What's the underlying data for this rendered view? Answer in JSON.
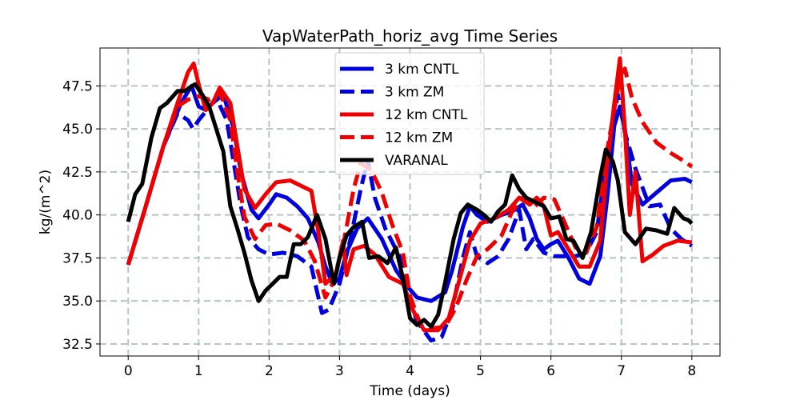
{
  "chart_data": {
    "type": "line",
    "title": "VapWaterPath_horiz_avg Time Series",
    "xlabel": "Time (days)",
    "ylabel": "kg/(m^2)",
    "xlim": [
      -0.4,
      8.4
    ],
    "ylim": [
      31.8,
      49.7
    ],
    "xticks": [
      0,
      1,
      2,
      3,
      4,
      5,
      6,
      7,
      8
    ],
    "xtick_labels": [
      "0",
      "1",
      "2",
      "3",
      "4",
      "5",
      "6",
      "7",
      "8"
    ],
    "yticks": [
      32.5,
      35.0,
      37.5,
      40.0,
      42.5,
      45.0,
      47.5
    ],
    "ytick_labels": [
      "32.5",
      "35.0",
      "37.5",
      "40.0",
      "42.5",
      "45.0",
      "47.5"
    ],
    "grid": true,
    "legend_position": "upper-center",
    "series": [
      {
        "name": "3 km CNTL",
        "color": "#0000dd",
        "dash": "solid",
        "points": [
          [
            0,
            37.1
          ],
          [
            0.25,
            40.5
          ],
          [
            0.5,
            44.0
          ],
          [
            0.75,
            46.5
          ],
          [
            0.9,
            47.5
          ],
          [
            1.0,
            46.3
          ],
          [
            1.1,
            46.1
          ],
          [
            1.2,
            46.5
          ],
          [
            1.35,
            47.0
          ],
          [
            1.5,
            45.0
          ],
          [
            1.6,
            42.5
          ],
          [
            1.75,
            40.3
          ],
          [
            1.85,
            39.8
          ],
          [
            2.0,
            40.6
          ],
          [
            2.1,
            41.2
          ],
          [
            2.25,
            41.0
          ],
          [
            2.4,
            40.5
          ],
          [
            2.55,
            39.8
          ],
          [
            2.7,
            38.4
          ],
          [
            2.8,
            37.0
          ],
          [
            2.9,
            36.0
          ],
          [
            3.0,
            36.3
          ],
          [
            3.1,
            37.8
          ],
          [
            3.25,
            39.2
          ],
          [
            3.4,
            39.8
          ],
          [
            3.6,
            38.6
          ],
          [
            3.8,
            36.8
          ],
          [
            3.95,
            35.9
          ],
          [
            4.1,
            35.2
          ],
          [
            4.3,
            35.0
          ],
          [
            4.5,
            35.5
          ],
          [
            4.6,
            36.8
          ],
          [
            4.75,
            39.3
          ],
          [
            4.85,
            40.5
          ],
          [
            4.95,
            40.0
          ],
          [
            5.1,
            39.6
          ],
          [
            5.3,
            40.0
          ],
          [
            5.45,
            40.2
          ],
          [
            5.6,
            40.6
          ],
          [
            5.7,
            39.8
          ],
          [
            5.8,
            38.6
          ],
          [
            5.9,
            38.0
          ],
          [
            6.0,
            38.3
          ],
          [
            6.1,
            38.5
          ],
          [
            6.25,
            37.5
          ],
          [
            6.4,
            36.3
          ],
          [
            6.55,
            36.0
          ],
          [
            6.7,
            37.6
          ],
          [
            6.8,
            41.0
          ],
          [
            6.9,
            45.2
          ],
          [
            6.98,
            46.3
          ],
          [
            7.05,
            45.0
          ],
          [
            7.15,
            41.8
          ],
          [
            7.3,
            40.6
          ],
          [
            7.5,
            41.3
          ],
          [
            7.7,
            42.0
          ],
          [
            7.9,
            42.1
          ],
          [
            8.0,
            41.9
          ]
        ]
      },
      {
        "name": "3 km ZM",
        "color": "#0000dd",
        "dash": "dashed",
        "points": [
          [
            0,
            37.1
          ],
          [
            0.25,
            40.5
          ],
          [
            0.5,
            44.0
          ],
          [
            0.7,
            45.9
          ],
          [
            0.85,
            45.5
          ],
          [
            0.92,
            45.0
          ],
          [
            1.0,
            45.5
          ],
          [
            1.1,
            46.0
          ],
          [
            1.25,
            46.8
          ],
          [
            1.4,
            45.5
          ],
          [
            1.5,
            43.0
          ],
          [
            1.6,
            40.5
          ],
          [
            1.7,
            38.7
          ],
          [
            1.85,
            38.0
          ],
          [
            2.0,
            37.7
          ],
          [
            2.2,
            37.8
          ],
          [
            2.4,
            37.6
          ],
          [
            2.6,
            37.0
          ],
          [
            2.75,
            34.3
          ],
          [
            2.85,
            34.5
          ],
          [
            3.0,
            36.0
          ],
          [
            3.15,
            38.5
          ],
          [
            3.3,
            41.5
          ],
          [
            3.4,
            43.2
          ],
          [
            3.5,
            41.0
          ],
          [
            3.65,
            39.2
          ],
          [
            3.85,
            37.6
          ],
          [
            3.95,
            35.8
          ],
          [
            4.1,
            33.8
          ],
          [
            4.3,
            32.7
          ],
          [
            4.45,
            32.9
          ],
          [
            4.6,
            34.5
          ],
          [
            4.75,
            37.5
          ],
          [
            4.85,
            39.0
          ],
          [
            4.95,
            37.6
          ],
          [
            5.1,
            37.2
          ],
          [
            5.25,
            37.6
          ],
          [
            5.4,
            38.6
          ],
          [
            5.55,
            40.3
          ],
          [
            5.65,
            38.0
          ],
          [
            5.75,
            38.6
          ],
          [
            5.9,
            37.8
          ],
          [
            6.05,
            37.6
          ],
          [
            6.2,
            37.6
          ],
          [
            6.35,
            37.6
          ],
          [
            6.5,
            37.8
          ],
          [
            6.65,
            39.0
          ],
          [
            6.8,
            43.5
          ],
          [
            6.95,
            47.0
          ],
          [
            7.05,
            44.8
          ],
          [
            7.2,
            42.7
          ],
          [
            7.4,
            40.5
          ],
          [
            7.55,
            40.6
          ],
          [
            7.7,
            39.2
          ],
          [
            7.85,
            38.6
          ],
          [
            8.0,
            38.2
          ]
        ]
      },
      {
        "name": "12 km CNTL",
        "color": "#ee0000",
        "dash": "solid",
        "points": [
          [
            0,
            37.1
          ],
          [
            0.25,
            40.5
          ],
          [
            0.5,
            44.0
          ],
          [
            0.7,
            46.5
          ],
          [
            0.85,
            48.3
          ],
          [
            0.93,
            48.8
          ],
          [
            1.0,
            47.6
          ],
          [
            1.1,
            46.1
          ],
          [
            1.2,
            46.5
          ],
          [
            1.3,
            47.4
          ],
          [
            1.45,
            46.5
          ],
          [
            1.55,
            44.0
          ],
          [
            1.65,
            41.5
          ],
          [
            1.8,
            40.4
          ],
          [
            1.95,
            41.2
          ],
          [
            2.1,
            41.9
          ],
          [
            2.3,
            42.0
          ],
          [
            2.5,
            41.6
          ],
          [
            2.6,
            41.4
          ],
          [
            2.7,
            39.0
          ],
          [
            2.8,
            36.0
          ],
          [
            2.88,
            36.3
          ],
          [
            2.95,
            36.6
          ],
          [
            3.05,
            38.5
          ],
          [
            3.1,
            36.5
          ],
          [
            3.2,
            38.0
          ],
          [
            3.35,
            38.2
          ],
          [
            3.5,
            37.7
          ],
          [
            3.7,
            36.4
          ],
          [
            3.9,
            36.0
          ],
          [
            4.05,
            34.4
          ],
          [
            4.2,
            33.3
          ],
          [
            4.4,
            33.3
          ],
          [
            4.55,
            34.0
          ],
          [
            4.7,
            36.2
          ],
          [
            4.85,
            38.5
          ],
          [
            5.0,
            39.5
          ],
          [
            5.2,
            39.8
          ],
          [
            5.4,
            40.3
          ],
          [
            5.55,
            41.0
          ],
          [
            5.7,
            40.6
          ],
          [
            5.8,
            41.0
          ],
          [
            5.9,
            40.5
          ],
          [
            6.0,
            38.8
          ],
          [
            6.1,
            39.0
          ],
          [
            6.25,
            38.0
          ],
          [
            6.4,
            37.0
          ],
          [
            6.55,
            37.0
          ],
          [
            6.7,
            38.5
          ],
          [
            6.8,
            43.0
          ],
          [
            6.9,
            46.5
          ],
          [
            6.98,
            49.1
          ],
          [
            7.05,
            45.0
          ],
          [
            7.12,
            40.0
          ],
          [
            7.2,
            42.5
          ],
          [
            7.3,
            37.3
          ],
          [
            7.45,
            37.7
          ],
          [
            7.6,
            38.2
          ],
          [
            7.8,
            38.5
          ],
          [
            8.0,
            38.4
          ]
        ]
      },
      {
        "name": "12 km ZM",
        "color": "#ee0000",
        "dash": "dashed",
        "points": [
          [
            0,
            37.1
          ],
          [
            0.25,
            40.5
          ],
          [
            0.5,
            44.0
          ],
          [
            0.7,
            46.3
          ],
          [
            0.85,
            46.7
          ],
          [
            1.0,
            46.9
          ],
          [
            1.15,
            46.7
          ],
          [
            1.3,
            47.1
          ],
          [
            1.45,
            45.5
          ],
          [
            1.55,
            42.5
          ],
          [
            1.65,
            39.9
          ],
          [
            1.8,
            38.6
          ],
          [
            1.95,
            39.4
          ],
          [
            2.1,
            39.5
          ],
          [
            2.3,
            39.1
          ],
          [
            2.5,
            38.5
          ],
          [
            2.65,
            37.3
          ],
          [
            2.8,
            35.2
          ],
          [
            2.9,
            36.0
          ],
          [
            3.05,
            38.2
          ],
          [
            3.2,
            41.5
          ],
          [
            3.3,
            43.0
          ],
          [
            3.45,
            42.6
          ],
          [
            3.6,
            41.3
          ],
          [
            3.75,
            39.4
          ],
          [
            3.9,
            37.8
          ],
          [
            4.0,
            35.3
          ],
          [
            4.15,
            33.6
          ],
          [
            4.3,
            33.4
          ],
          [
            4.5,
            33.5
          ],
          [
            4.65,
            34.6
          ],
          [
            4.8,
            36.2
          ],
          [
            4.95,
            37.6
          ],
          [
            5.1,
            38.0
          ],
          [
            5.3,
            38.8
          ],
          [
            5.45,
            40.2
          ],
          [
            5.6,
            41.0
          ],
          [
            5.75,
            40.4
          ],
          [
            5.9,
            41.0
          ],
          [
            6.05,
            40.9
          ],
          [
            6.2,
            39.5
          ],
          [
            6.35,
            38.1
          ],
          [
            6.5,
            37.8
          ],
          [
            6.65,
            39.3
          ],
          [
            6.8,
            43.8
          ],
          [
            6.95,
            47.3
          ],
          [
            7.05,
            48.5
          ],
          [
            7.15,
            46.8
          ],
          [
            7.3,
            45.4
          ],
          [
            7.5,
            44.2
          ],
          [
            7.7,
            43.6
          ],
          [
            7.9,
            43.1
          ],
          [
            8.0,
            42.8
          ]
        ]
      },
      {
        "name": "VARANAL",
        "color": "#000000",
        "dash": "solid",
        "points": [
          [
            0,
            39.6
          ],
          [
            0.1,
            41.2
          ],
          [
            0.2,
            41.8
          ],
          [
            0.33,
            44.5
          ],
          [
            0.45,
            46.2
          ],
          [
            0.55,
            46.5
          ],
          [
            0.7,
            47.2
          ],
          [
            0.8,
            47.2
          ],
          [
            0.95,
            47.6
          ],
          [
            1.05,
            47.0
          ],
          [
            1.15,
            46.3
          ],
          [
            1.25,
            45.0
          ],
          [
            1.35,
            43.7
          ],
          [
            1.45,
            40.5
          ],
          [
            1.55,
            39.2
          ],
          [
            1.65,
            37.8
          ],
          [
            1.75,
            36.2
          ],
          [
            1.85,
            35.0
          ],
          [
            1.95,
            35.6
          ],
          [
            2.05,
            36.0
          ],
          [
            2.15,
            36.4
          ],
          [
            2.25,
            36.4
          ],
          [
            2.35,
            38.3
          ],
          [
            2.45,
            38.3
          ],
          [
            2.55,
            38.7
          ],
          [
            2.68,
            40.0
          ],
          [
            2.8,
            38.6
          ],
          [
            2.92,
            36.0
          ],
          [
            3.0,
            37.5
          ],
          [
            3.1,
            38.8
          ],
          [
            3.2,
            39.3
          ],
          [
            3.32,
            39.6
          ],
          [
            3.42,
            37.5
          ],
          [
            3.55,
            37.6
          ],
          [
            3.68,
            37.2
          ],
          [
            3.8,
            38.1
          ],
          [
            3.9,
            36.3
          ],
          [
            4.0,
            34.0
          ],
          [
            4.1,
            33.6
          ],
          [
            4.2,
            33.9
          ],
          [
            4.3,
            33.5
          ],
          [
            4.4,
            34.2
          ],
          [
            4.5,
            36.1
          ],
          [
            4.62,
            38.6
          ],
          [
            4.72,
            40.1
          ],
          [
            4.82,
            40.6
          ],
          [
            4.95,
            40.3
          ],
          [
            5.05,
            40.0
          ],
          [
            5.15,
            39.6
          ],
          [
            5.25,
            40.2
          ],
          [
            5.35,
            40.6
          ],
          [
            5.45,
            42.3
          ],
          [
            5.55,
            41.5
          ],
          [
            5.65,
            41.0
          ],
          [
            5.75,
            40.8
          ],
          [
            5.9,
            40.5
          ],
          [
            6.0,
            39.8
          ],
          [
            6.12,
            39.9
          ],
          [
            6.22,
            38.6
          ],
          [
            6.32,
            38.5
          ],
          [
            6.45,
            37.5
          ],
          [
            6.57,
            39.0
          ],
          [
            6.7,
            42.2
          ],
          [
            6.78,
            43.8
          ],
          [
            6.88,
            43.1
          ],
          [
            6.95,
            42.0
          ],
          [
            7.05,
            39.0
          ],
          [
            7.2,
            38.3
          ],
          [
            7.35,
            39.2
          ],
          [
            7.5,
            39.1
          ],
          [
            7.65,
            38.9
          ],
          [
            7.75,
            40.4
          ],
          [
            7.88,
            39.8
          ],
          [
            7.95,
            39.7
          ],
          [
            8.0,
            39.5
          ]
        ]
      }
    ]
  }
}
